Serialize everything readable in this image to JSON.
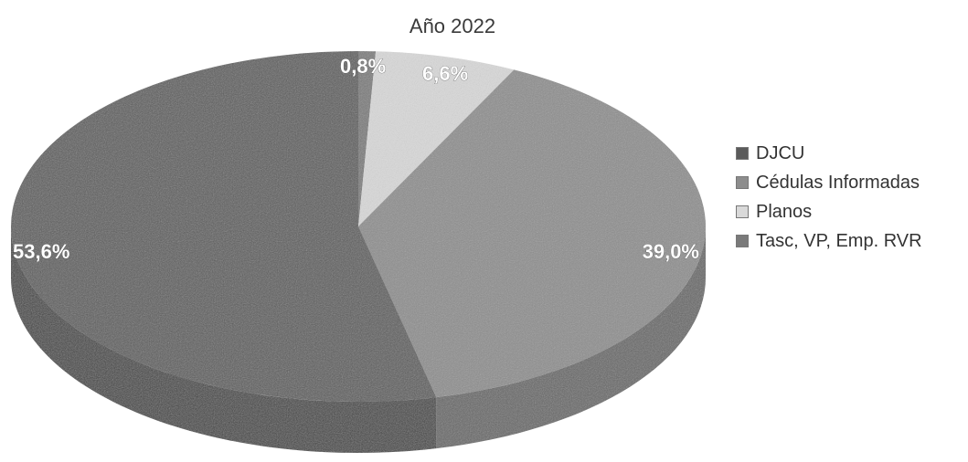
{
  "chart_data": {
    "type": "pie",
    "title": "Año 2022",
    "categories": [
      "DJCU",
      "Cédulas Informadas",
      "Planos",
      "Tasc, VP, Emp. RVR"
    ],
    "values": [
      53.6,
      39.0,
      6.6,
      0.8
    ],
    "data_labels": [
      "53,6%",
      "39,0%",
      "6,6%",
      "0,8%"
    ],
    "colors": [
      "#5b5b5b",
      "#8d8d8d",
      "#d9d9d9",
      "#7a7a7a"
    ],
    "legend_position": "right",
    "style": "3d"
  }
}
